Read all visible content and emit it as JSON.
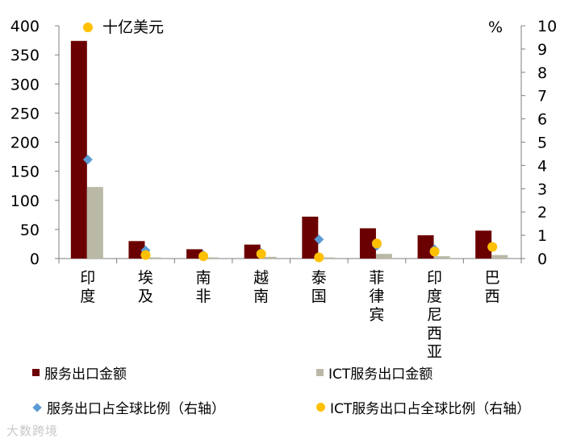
{
  "chart_data": {
    "type": "bar",
    "left_axis": {
      "unit": "十亿美元",
      "ylim": [
        0,
        400
      ],
      "ticks": [
        "0",
        "50",
        "100",
        "150",
        "200",
        "250",
        "300",
        "350",
        "400"
      ]
    },
    "right_axis": {
      "unit": "%",
      "ylim": [
        0,
        10
      ],
      "ticks": [
        "0",
        "1",
        "2",
        "3",
        "4",
        "5",
        "6",
        "7",
        "8",
        "9",
        "10"
      ]
    },
    "categories": [
      "印度",
      "埃及",
      "南非",
      "越南",
      "泰国",
      "菲律宾",
      "印度尼西亚",
      "巴西"
    ],
    "series": [
      {
        "name": "服务出口金额",
        "kind": "bar",
        "axis": "left",
        "color": "#6b0000",
        "values": [
          374,
          30,
          16,
          24,
          72,
          52,
          40,
          48
        ]
      },
      {
        "name": "ICT服务出口金额",
        "kind": "bar",
        "axis": "left",
        "color": "#b9b9a6",
        "values": [
          123,
          2,
          2,
          3,
          2,
          8,
          4,
          6
        ]
      },
      {
        "name": "服务出口占全球比例（右轴）",
        "kind": "diamond",
        "axis": "right",
        "color": "#5b9bd5",
        "values": [
          4.25,
          0.35,
          0.15,
          0.25,
          0.82,
          0.55,
          0.4,
          0.5
        ]
      },
      {
        "name": "ICT服务出口占全球比例（右轴）",
        "kind": "dot",
        "axis": "right",
        "color": "#ffc000",
        "values": [
          null,
          0.15,
          0.1,
          0.2,
          0.05,
          0.65,
          0.3,
          0.5
        ]
      }
    ],
    "grid": false,
    "legend_position": "bottom"
  },
  "watermark": "大数跨境"
}
